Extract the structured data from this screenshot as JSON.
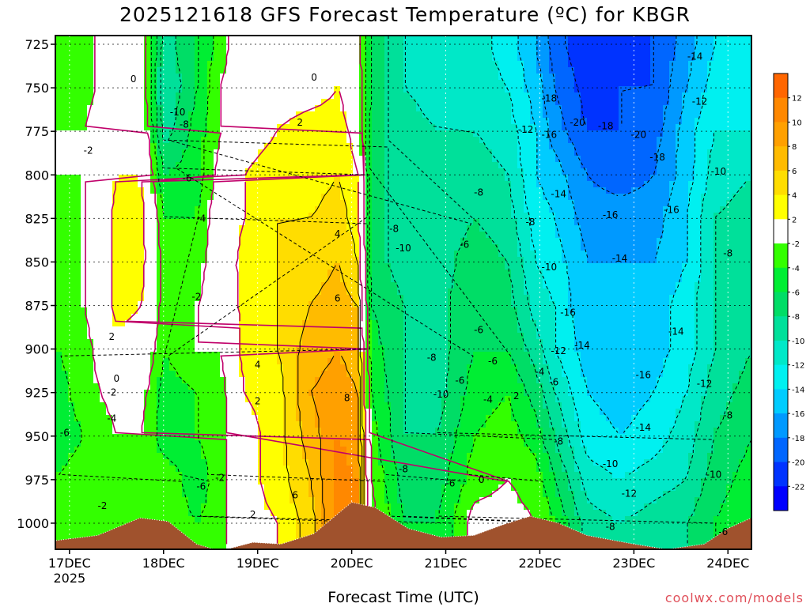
{
  "title": "2025121618 GFS Forecast Temperature (ºC) for KBGR",
  "xlabel": "Forecast Time (UTC)",
  "credit": "coolwx.com/models",
  "colors": {
    "ground": "#a0522d",
    "warm_contour": "#c0006a"
  },
  "chart_data": {
    "type": "heatmap",
    "title": "2025121618 GFS Forecast Temperature (ºC) for KBGR",
    "xlabel": "Forecast Time (UTC)",
    "ylabel": "",
    "x_ticks": [
      "17DEC",
      "18DEC",
      "19DEC",
      "20DEC",
      "21DEC",
      "22DEC",
      "23DEC",
      "24DEC"
    ],
    "x_year_label": "2025",
    "y_ticks": [
      725,
      750,
      775,
      800,
      825,
      850,
      875,
      900,
      925,
      950,
      975,
      1000
    ],
    "ylim": [
      720,
      1015
    ],
    "xlim_days": [
      16.85,
      24.25
    ],
    "grid": true,
    "colorbar": {
      "levels": [
        12,
        10,
        8,
        6,
        4,
        2,
        -2,
        -4,
        -6,
        -8,
        -10,
        -12,
        -14,
        -16,
        -18,
        -20,
        -22
      ],
      "colors": [
        "#ff6600",
        "#ff8800",
        "#ffa000",
        "#ffbb00",
        "#ffdd00",
        "#ffff00",
        "#ffffff",
        "#33ff00",
        "#00ee33",
        "#00dd66",
        "#00e09a",
        "#00e8c8",
        "#00f0f0",
        "#00ccff",
        "#0099ff",
        "#0066ff",
        "#0033ff",
        "#0000ff"
      ],
      "placement": "right"
    },
    "columns": [
      {
        "day": 16.85,
        "values": [
          -3,
          -3,
          -2,
          -2,
          -3,
          -4,
          -4,
          -4,
          -5,
          -5,
          -4,
          -4
        ]
      },
      {
        "day": 17.15,
        "values": [
          -3,
          -3,
          -2,
          -2,
          -2,
          -2,
          -2,
          -3,
          -3,
          -4,
          -3,
          -3
        ]
      },
      {
        "day": 17.5,
        "values": [
          0,
          0,
          1,
          2,
          3,
          3,
          3,
          1,
          -1,
          -2,
          -3,
          -3
        ]
      },
      {
        "day": 17.75,
        "values": [
          0,
          0,
          1,
          2,
          3,
          3,
          2,
          1,
          -1,
          -2,
          -3,
          -3
        ]
      },
      {
        "day": 18.0,
        "values": [
          -9,
          -10,
          -9,
          -6,
          -4,
          -3,
          -3,
          -4,
          -5,
          -5,
          -3,
          -3
        ]
      },
      {
        "day": 18.35,
        "values": [
          -6,
          -6,
          -5,
          -5,
          -4,
          -3,
          -2,
          -2,
          -4,
          -4,
          -5,
          -4
        ]
      },
      {
        "day": 18.6,
        "values": [
          -3,
          -2,
          -2,
          -1,
          0,
          0,
          -1,
          -2,
          -3,
          -3,
          -3,
          -3
        ]
      },
      {
        "day": 18.85,
        "values": [
          0,
          0,
          1,
          2,
          2,
          3,
          3,
          3,
          2,
          1,
          1,
          1
        ]
      },
      {
        "day": 19.2,
        "values": [
          0,
          1,
          2,
          3,
          4,
          4,
          4,
          4,
          3,
          3,
          3,
          2
        ]
      },
      {
        "day": 19.55,
        "values": [
          0,
          1,
          3,
          3,
          4,
          5,
          6,
          7,
          8,
          7,
          6,
          5
        ]
      },
      {
        "day": 19.85,
        "values": [
          1,
          2,
          3,
          4,
          5,
          6,
          7,
          8,
          9,
          10,
          11,
          11
        ]
      },
      {
        "day": 20.05,
        "values": [
          -1,
          0,
          1,
          2,
          3,
          4,
          6,
          7,
          8,
          9,
          10,
          10
        ]
      },
      {
        "day": 20.2,
        "values": [
          -6,
          -6,
          -7,
          -7,
          -7,
          -7,
          -6,
          -5,
          -4,
          -3,
          -2,
          -1
        ]
      },
      {
        "day": 20.55,
        "values": [
          -10,
          -10,
          -9,
          -9,
          -9,
          -9,
          -8,
          -8,
          -8,
          -8,
          -7,
          -6
        ]
      },
      {
        "day": 20.9,
        "values": [
          -11,
          -11,
          -10,
          -10,
          -9,
          -9,
          -9,
          -9,
          -9,
          -8,
          -7,
          -6
        ]
      },
      {
        "day": 21.3,
        "values": [
          -11,
          -11,
          -10,
          -9,
          -8,
          -7,
          -6,
          -6,
          -5,
          -4,
          -3,
          -1
        ]
      },
      {
        "day": 21.65,
        "values": [
          -13,
          -12,
          -11,
          -10,
          -9,
          -8,
          -7,
          -6,
          -4,
          -3,
          -2,
          -1
        ]
      },
      {
        "day": 21.95,
        "values": [
          -16,
          -15,
          -14,
          -14,
          -13,
          -12,
          -11,
          -9,
          -7,
          -5,
          -3,
          -2
        ]
      },
      {
        "day": 22.15,
        "values": [
          -19,
          -18,
          -17,
          -15,
          -14,
          -13,
          -12,
          -12,
          -10,
          -8,
          -6,
          -4
        ]
      },
      {
        "day": 22.5,
        "values": [
          -22,
          -21,
          -20,
          -18,
          -17,
          -16,
          -16,
          -15,
          -14,
          -13,
          -11,
          -9
        ]
      },
      {
        "day": 22.85,
        "values": [
          -21,
          -20,
          -20,
          -19,
          -17,
          -16,
          -16,
          -15,
          -15,
          -14,
          -12,
          -10
        ]
      },
      {
        "day": 23.2,
        "values": [
          -20,
          -20,
          -19,
          -18,
          -17,
          -16,
          -15,
          -15,
          -14,
          -13,
          -11,
          -9
        ]
      },
      {
        "day": 23.55,
        "values": [
          -17,
          -16,
          -15,
          -15,
          -14,
          -14,
          -13,
          -13,
          -12,
          -11,
          -10,
          -8
        ]
      },
      {
        "day": 23.85,
        "values": [
          -14,
          -13,
          -12,
          -11,
          -10,
          -10,
          -10,
          -10,
          -9,
          -8,
          -7,
          -6
        ]
      },
      {
        "day": 24.25,
        "values": [
          -13,
          -12,
          -12,
          -10,
          -9,
          -8,
          -8,
          -8,
          -7,
          -6,
          -5,
          -4
        ]
      }
    ],
    "terrain_surface_hPa": [
      {
        "day": 16.85,
        "p": 1010
      },
      {
        "day": 17.3,
        "p": 1007
      },
      {
        "day": 17.75,
        "p": 997
      },
      {
        "day": 18.05,
        "p": 999
      },
      {
        "day": 18.35,
        "p": 1012
      },
      {
        "day": 18.6,
        "p": 1016
      },
      {
        "day": 18.95,
        "p": 1011
      },
      {
        "day": 19.25,
        "p": 1012
      },
      {
        "day": 19.6,
        "p": 1006
      },
      {
        "day": 20.0,
        "p": 988
      },
      {
        "day": 20.25,
        "p": 991
      },
      {
        "day": 20.6,
        "p": 1003
      },
      {
        "day": 20.95,
        "p": 1008
      },
      {
        "day": 21.3,
        "p": 1007
      },
      {
        "day": 21.6,
        "p": 1001
      },
      {
        "day": 21.9,
        "p": 996
      },
      {
        "day": 22.2,
        "p": 1000
      },
      {
        "day": 22.5,
        "p": 1007
      },
      {
        "day": 23.0,
        "p": 1012
      },
      {
        "day": 23.35,
        "p": 1015
      },
      {
        "day": 23.75,
        "p": 1012
      },
      {
        "day": 24.0,
        "p": 1003
      },
      {
        "day": 24.25,
        "p": 997
      }
    ],
    "contour_labels": [
      {
        "day": 17.68,
        "p": 745,
        "text": "0"
      },
      {
        "day": 17.2,
        "p": 786,
        "text": "-2"
      },
      {
        "day": 18.15,
        "p": 764,
        "text": "-10"
      },
      {
        "day": 18.22,
        "p": 771,
        "text": "-8"
      },
      {
        "day": 18.25,
        "p": 802,
        "text": "-6"
      },
      {
        "day": 18.4,
        "p": 825,
        "text": "-4"
      },
      {
        "day": 18.35,
        "p": 870,
        "text": "-2"
      },
      {
        "day": 17.45,
        "p": 893,
        "text": "2"
      },
      {
        "day": 17.5,
        "p": 917,
        "text": "0"
      },
      {
        "day": 17.45,
        "p": 925,
        "text": "-2"
      },
      {
        "day": 17.45,
        "p": 940,
        "text": "-4"
      },
      {
        "day": 16.95,
        "p": 948,
        "text": "-6"
      },
      {
        "day": 17.35,
        "p": 990,
        "text": "-2"
      },
      {
        "day": 18.4,
        "p": 979,
        "text": "-6"
      },
      {
        "day": 18.6,
        "p": 974,
        "text": "-2"
      },
      {
        "day": 19.6,
        "p": 744,
        "text": "0"
      },
      {
        "day": 19.45,
        "p": 770,
        "text": "2"
      },
      {
        "day": 19.85,
        "p": 834,
        "text": "4"
      },
      {
        "day": 19.85,
        "p": 871,
        "text": "6"
      },
      {
        "day": 19.95,
        "p": 928,
        "text": "8"
      },
      {
        "day": 19.0,
        "p": 909,
        "text": "4"
      },
      {
        "day": 19.0,
        "p": 930,
        "text": "2"
      },
      {
        "day": 19.4,
        "p": 984,
        "text": "6"
      },
      {
        "day": 18.95,
        "p": 995,
        "text": "2"
      },
      {
        "day": 20.45,
        "p": 831,
        "text": "-8"
      },
      {
        "day": 20.55,
        "p": 842,
        "text": "-10"
      },
      {
        "day": 20.85,
        "p": 905,
        "text": "-8"
      },
      {
        "day": 20.95,
        "p": 926,
        "text": "-10"
      },
      {
        "day": 21.2,
        "p": 840,
        "text": "-6"
      },
      {
        "day": 21.35,
        "p": 810,
        "text": "-8"
      },
      {
        "day": 21.35,
        "p": 889,
        "text": "-6"
      },
      {
        "day": 21.15,
        "p": 918,
        "text": "-6"
      },
      {
        "day": 21.5,
        "p": 907,
        "text": "-6"
      },
      {
        "day": 21.45,
        "p": 929,
        "text": "-4"
      },
      {
        "day": 21.05,
        "p": 977,
        "text": "-6"
      },
      {
        "day": 20.55,
        "p": 969,
        "text": "-8"
      },
      {
        "day": 21.38,
        "p": 975,
        "text": "0"
      },
      {
        "day": 21.75,
        "p": 927,
        "text": "2"
      },
      {
        "day": 21.85,
        "p": 774,
        "text": "-12"
      },
      {
        "day": 22.1,
        "p": 756,
        "text": "-18"
      },
      {
        "day": 22.1,
        "p": 777,
        "text": "-16"
      },
      {
        "day": 22.4,
        "p": 770,
        "text": "-20"
      },
      {
        "day": 22.7,
        "p": 772,
        "text": "-18"
      },
      {
        "day": 23.05,
        "p": 777,
        "text": "-20"
      },
      {
        "day": 23.25,
        "p": 790,
        "text": "-18"
      },
      {
        "day": 22.2,
        "p": 811,
        "text": "-14"
      },
      {
        "day": 21.9,
        "p": 827,
        "text": "-8"
      },
      {
        "day": 22.1,
        "p": 853,
        "text": "-10"
      },
      {
        "day": 22.3,
        "p": 879,
        "text": "-16"
      },
      {
        "day": 22.2,
        "p": 901,
        "text": "-12"
      },
      {
        "day": 22.45,
        "p": 898,
        "text": "-14"
      },
      {
        "day": 22.0,
        "p": 913,
        "text": "-4"
      },
      {
        "day": 22.15,
        "p": 919,
        "text": "-6"
      },
      {
        "day": 22.2,
        "p": 953,
        "text": "-8"
      },
      {
        "day": 22.75,
        "p": 823,
        "text": "-16"
      },
      {
        "day": 22.85,
        "p": 848,
        "text": "-14"
      },
      {
        "day": 23.4,
        "p": 820,
        "text": "-16"
      },
      {
        "day": 23.45,
        "p": 890,
        "text": "-14"
      },
      {
        "day": 23.1,
        "p": 915,
        "text": "-16"
      },
      {
        "day": 23.75,
        "p": 920,
        "text": "-12"
      },
      {
        "day": 23.1,
        "p": 945,
        "text": "-14"
      },
      {
        "day": 22.75,
        "p": 966,
        "text": "-10"
      },
      {
        "day": 22.95,
        "p": 983,
        "text": "-12"
      },
      {
        "day": 24.0,
        "p": 938,
        "text": "-8"
      },
      {
        "day": 23.85,
        "p": 972,
        "text": "-10"
      },
      {
        "day": 23.65,
        "p": 732,
        "text": "-14"
      },
      {
        "day": 23.7,
        "p": 758,
        "text": "-12"
      },
      {
        "day": 23.9,
        "p": 798,
        "text": "-10"
      },
      {
        "day": 24.0,
        "p": 845,
        "text": "-8"
      },
      {
        "day": 22.75,
        "p": 1002,
        "text": "-8"
      },
      {
        "day": 23.95,
        "p": 1005,
        "text": "-6"
      }
    ]
  }
}
